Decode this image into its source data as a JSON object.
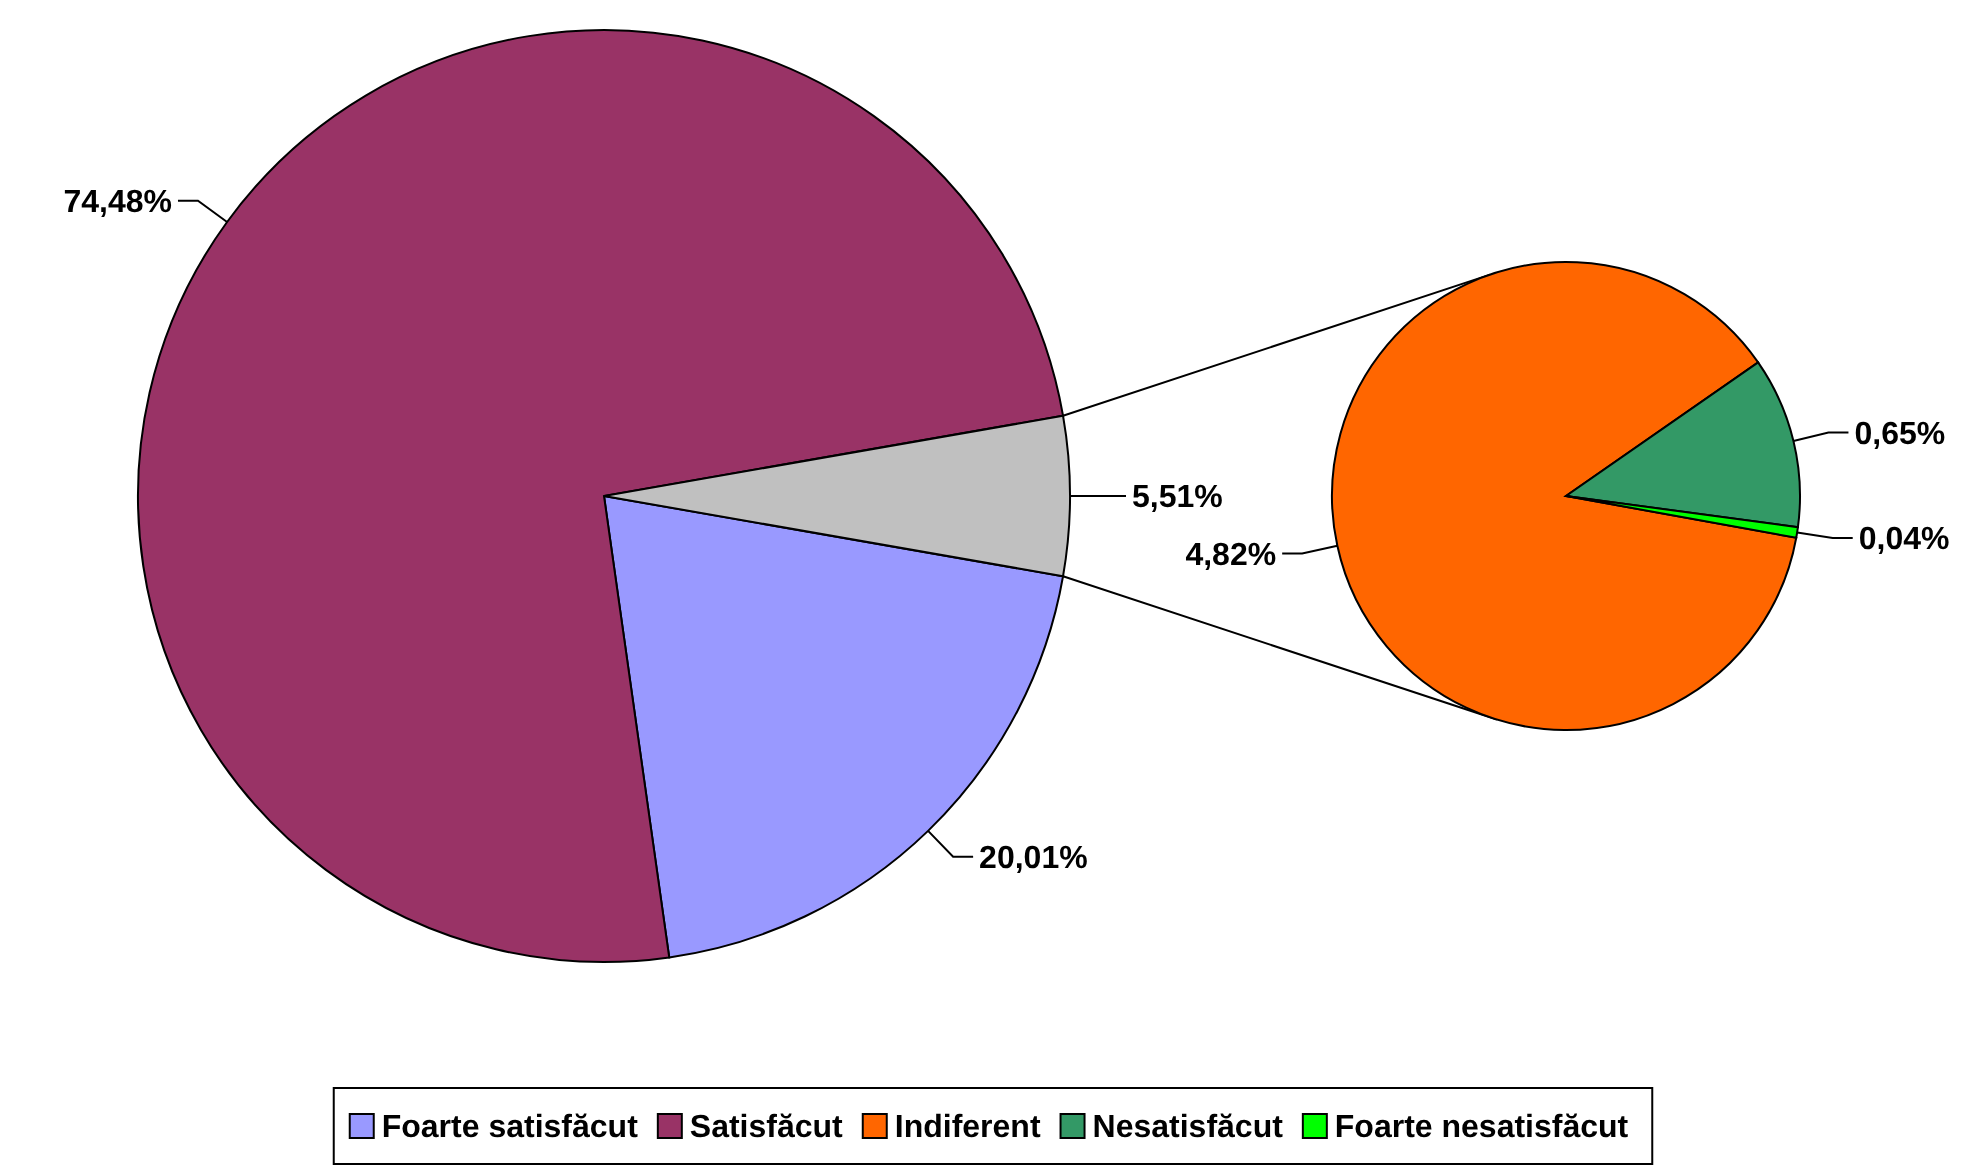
{
  "chart_data": [
    {
      "type": "pie",
      "categories": [
        "Foarte satisfăcut",
        "Satisfăcut",
        null
      ],
      "values": [
        20.01,
        74.48,
        5.51
      ],
      "colors": [
        "#9999ff",
        "#993366",
        "#c0c0c0"
      ],
      "value_labels": [
        "20,01%",
        "74,48%",
        "5,51%"
      ],
      "legend": "bottom"
    },
    {
      "type": "pie",
      "categories": [
        "Indiferent",
        "Nesatisfăcut",
        "Foarte nesatisfăcut"
      ],
      "values": [
        4.82,
        0.65,
        0.04
      ],
      "colors": [
        "#ff6600",
        "#339966",
        "#00ff00"
      ],
      "value_labels": [
        "4,82%",
        "0,65%",
        "0,04%"
      ],
      "legend": "bottom"
    }
  ]
}
